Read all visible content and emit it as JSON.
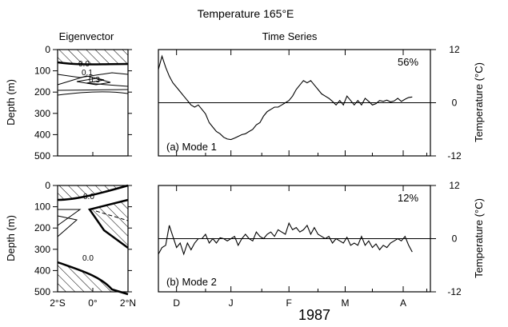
{
  "figure": {
    "title": "Temperature 165°E",
    "left_header": "Eigenvector",
    "right_header": "Time Series",
    "year_label": "1987"
  },
  "eigen_axes": {
    "ylabel": "Depth (m)",
    "depth_ticks": [
      "0",
      "100",
      "200",
      "300",
      "400",
      "500"
    ],
    "lat_ticks": [
      "2°S",
      "0°",
      "2°N"
    ]
  },
  "time_axes": {
    "ylabel": "Temperature (°C)",
    "temp_ticks": [
      "12",
      "0",
      "-12"
    ],
    "month_labels": [
      "D",
      "J",
      "F",
      "M",
      "A"
    ]
  },
  "panels": [
    {
      "id": "a",
      "label": "(a) Mode 1",
      "variance": "56%",
      "contour_labels": [
        "0.0",
        "0.1",
        "0.3"
      ]
    },
    {
      "id": "b",
      "label": "(b) Mode 2",
      "variance": "12%",
      "contour_labels": [
        "0.0",
        "0.0"
      ]
    }
  ],
  "chart_data": [
    {
      "type": "line",
      "title": "Temperature 165°E",
      "subtitle": "(a) Mode 1",
      "ylabel": "Temperature (°C)",
      "ylim": [
        -12,
        12
      ],
      "xlim": [
        0,
        150
      ],
      "x_tick_positions": [
        10,
        40,
        72,
        103,
        135
      ],
      "x_tick_labels": [
        "D",
        "J",
        "F",
        "M",
        "A"
      ],
      "series": [
        {
          "name": "(a) Mode 1",
          "x": [
            0,
            2,
            4,
            6,
            8,
            10,
            12,
            14,
            16,
            18,
            20,
            22,
            24,
            26,
            28,
            30,
            32,
            34,
            36,
            38,
            40,
            42,
            44,
            46,
            48,
            50,
            52,
            54,
            56,
            58,
            60,
            62,
            64,
            66,
            68,
            70,
            72,
            74,
            76,
            78,
            80,
            82,
            84,
            86,
            88,
            90,
            92,
            94,
            96,
            98,
            100,
            102,
            104,
            106,
            108,
            110,
            112,
            114,
            116,
            118,
            120,
            122,
            124,
            126,
            128,
            130,
            132,
            134,
            136,
            138,
            140
          ],
          "y": [
            7.5,
            10.5,
            8,
            6,
            4.5,
            3.5,
            2.5,
            1.5,
            0.5,
            -0.5,
            -1,
            -0.5,
            -1.5,
            -2.5,
            -4.5,
            -5.5,
            -6.5,
            -7,
            -7.8,
            -8.2,
            -8.3,
            -8,
            -7.6,
            -7.2,
            -7,
            -6.5,
            -6,
            -5,
            -4.5,
            -3,
            -2,
            -1.5,
            -1,
            -1,
            -0.5,
            0,
            0.5,
            1.5,
            3,
            4,
            5,
            4.5,
            5,
            4,
            3,
            2,
            1.5,
            1,
            0.3,
            -0.5,
            0.5,
            -0.5,
            1.5,
            0.5,
            -0.5,
            0.5,
            -0.5,
            1,
            0.3,
            -0.5,
            -0.2,
            0.5,
            0.3,
            0.6,
            0.2,
            0.4,
            1,
            0.3,
            0.8,
            1.2,
            1.3
          ]
        }
      ]
    },
    {
      "type": "line",
      "title": "Temperature 165°E",
      "subtitle": "(b) Mode 2",
      "ylabel": "Temperature (°C)",
      "ylim": [
        -12,
        12
      ],
      "xlim": [
        0,
        150
      ],
      "x_tick_positions": [
        10,
        40,
        72,
        103,
        135
      ],
      "x_tick_labels": [
        "D",
        "J",
        "F",
        "M",
        "A"
      ],
      "series": [
        {
          "name": "(b) Mode 2",
          "x": [
            0,
            2,
            4,
            6,
            8,
            10,
            12,
            14,
            16,
            18,
            20,
            22,
            24,
            26,
            28,
            30,
            32,
            34,
            36,
            38,
            40,
            42,
            44,
            46,
            48,
            50,
            52,
            54,
            56,
            58,
            60,
            62,
            64,
            66,
            68,
            70,
            72,
            74,
            76,
            78,
            80,
            82,
            84,
            86,
            88,
            90,
            92,
            94,
            96,
            98,
            100,
            102,
            104,
            106,
            108,
            110,
            112,
            114,
            116,
            118,
            120,
            122,
            124,
            126,
            128,
            130,
            132,
            134,
            136,
            138,
            140
          ],
          "y": [
            -3.5,
            -2,
            -1.5,
            3,
            0.5,
            -2,
            -1,
            -3.5,
            -1,
            -2.5,
            -1,
            0,
            0,
            1,
            -1,
            0,
            -1,
            0.2,
            0,
            -0.5,
            0,
            0.5,
            -1.5,
            0,
            1,
            0,
            -0.5,
            1.5,
            0.5,
            0,
            1,
            1.5,
            0.5,
            2,
            1.5,
            1,
            3.5,
            2,
            2.5,
            1.5,
            2,
            3,
            1,
            2.5,
            1,
            0.5,
            0,
            0.5,
            -1,
            0,
            -0.5,
            -1,
            0.3,
            -1.5,
            -1,
            -1.5,
            0.5,
            -1.5,
            -0.5,
            -2,
            -1.2,
            -2.5,
            -1.5,
            -2,
            -1,
            -0.5,
            0,
            -0.5,
            0.5,
            -1.5,
            -3
          ]
        }
      ]
    }
  ]
}
